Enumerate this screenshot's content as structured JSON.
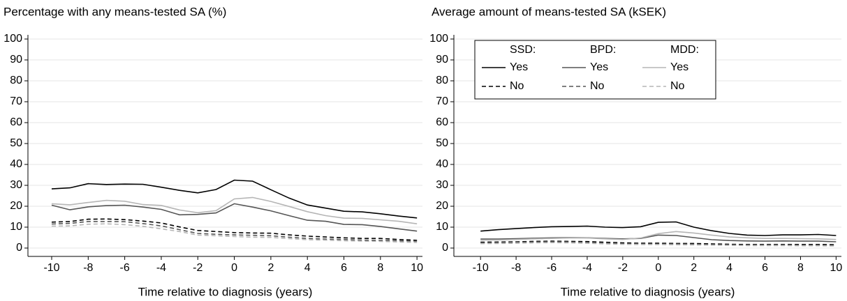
{
  "chart_data": [
    {
      "type": "line",
      "title": "Percentage with any means-tested SA (%)",
      "xlabel": "Time relative to diagnosis (years)",
      "x": [
        -10,
        -9,
        -8,
        -7,
        -6,
        -5,
        -4,
        -3,
        -2,
        -1,
        0,
        1,
        2,
        3,
        4,
        5,
        6,
        7,
        8,
        9,
        10
      ],
      "xlim": [
        -11.3,
        10.3
      ],
      "xticks": [
        -10,
        -8,
        -6,
        -4,
        -2,
        0,
        2,
        4,
        6,
        8,
        10
      ],
      "ylim": [
        -4,
        102
      ],
      "yticks": [
        0,
        10,
        20,
        30,
        40,
        50,
        60,
        70,
        80,
        90,
        100
      ],
      "grid": true,
      "legend": false,
      "series": [
        {
          "color": "#000000",
          "dash": false,
          "values": [
            28.3,
            28.8,
            30.8,
            30.4,
            30.6,
            30.5,
            29.1,
            27.6,
            26.4,
            28.0,
            32.5,
            32.0,
            27.9,
            23.9,
            20.6,
            19.1,
            17.6,
            17.3,
            16.4,
            15.3,
            14.4
          ]
        },
        {
          "color": "#000000",
          "dash": true,
          "values": [
            12.4,
            12.7,
            13.8,
            13.9,
            13.6,
            12.9,
            12.0,
            10.1,
            8.4,
            7.9,
            7.4,
            7.2,
            7.1,
            6.3,
            5.7,
            5.3,
            4.9,
            4.6,
            4.6,
            4.1,
            3.7
          ]
        },
        {
          "color": "#555555",
          "dash": false,
          "values": [
            20.5,
            18.3,
            19.7,
            20.3,
            20.5,
            19.6,
            18.5,
            15.9,
            16.1,
            16.8,
            21.2,
            19.6,
            17.8,
            15.5,
            13.3,
            12.8,
            11.3,
            11.2,
            10.3,
            9.2,
            8.1
          ]
        },
        {
          "color": "#555555",
          "dash": true,
          "values": [
            11.5,
            11.8,
            12.7,
            12.7,
            12.6,
            11.7,
            10.6,
            8.8,
            7.0,
            6.6,
            6.3,
            6.1,
            5.9,
            5.2,
            4.6,
            4.3,
            4.1,
            3.8,
            3.7,
            3.5,
            3.3
          ]
        },
        {
          "color": "#b5b5b5",
          "dash": false,
          "values": [
            21.2,
            20.7,
            21.8,
            22.8,
            22.4,
            20.8,
            20.4,
            18.2,
            16.9,
            17.9,
            23.5,
            24.2,
            22.3,
            19.9,
            17.4,
            15.5,
            14.3,
            14.2,
            13.5,
            12.8,
            11.6
          ]
        },
        {
          "color": "#b5b5b5",
          "dash": true,
          "values": [
            10.5,
            10.6,
            11.4,
            11.6,
            11.2,
            10.4,
            9.2,
            7.9,
            6.2,
            5.9,
            5.5,
            5.2,
            5.1,
            4.5,
            4.0,
            3.8,
            3.5,
            3.3,
            3.2,
            2.9,
            2.7
          ]
        }
      ]
    },
    {
      "type": "line",
      "title": "Average amount of means-tested SA (kSEK)",
      "xlabel": "Time relative to diagnosis (years)",
      "x": [
        -10,
        -9,
        -8,
        -7,
        -6,
        -5,
        -4,
        -3,
        -2,
        -1,
        0,
        1,
        2,
        3,
        4,
        5,
        6,
        7,
        8,
        9,
        10
      ],
      "xlim": [
        -11.5,
        10.3
      ],
      "xticks": [
        -10,
        -8,
        -6,
        -4,
        -2,
        0,
        2,
        4,
        6,
        8,
        10
      ],
      "ylim": [
        -4,
        102
      ],
      "yticks": [
        0,
        10,
        20,
        30,
        40,
        50,
        60,
        70,
        80,
        90,
        100
      ],
      "grid": true,
      "legend": true,
      "series": [
        {
          "group": "SSD:",
          "name": "Yes",
          "color": "#000000",
          "dash": false,
          "values": [
            8.1,
            8.8,
            9.3,
            9.8,
            10.2,
            10.3,
            10.5,
            10.0,
            9.8,
            10.2,
            12.3,
            12.5,
            10.0,
            8.3,
            7.0,
            6.2,
            6.0,
            6.3,
            6.3,
            6.5,
            6.0
          ]
        },
        {
          "group": "SSD:",
          "name": "No",
          "color": "#000000",
          "dash": true,
          "values": [
            2.8,
            2.9,
            3.0,
            3.2,
            3.3,
            3.2,
            3.1,
            2.8,
            2.5,
            2.3,
            2.3,
            2.2,
            2.2,
            2.0,
            1.8,
            1.7,
            1.7,
            1.7,
            1.7,
            1.7,
            1.6
          ]
        },
        {
          "group": "BPD:",
          "name": "Yes",
          "color": "#555555",
          "dash": false,
          "values": [
            4.3,
            4.3,
            4.5,
            4.7,
            4.9,
            5.0,
            4.9,
            4.6,
            4.4,
            4.6,
            6.2,
            6.0,
            5.0,
            4.0,
            3.6,
            3.4,
            3.3,
            3.4,
            3.3,
            3.3,
            3.0
          ]
        },
        {
          "group": "BPD:",
          "name": "No",
          "color": "#555555",
          "dash": true,
          "values": [
            2.5,
            2.6,
            2.8,
            2.9,
            3.0,
            2.9,
            2.7,
            2.4,
            2.1,
            2.0,
            1.9,
            1.9,
            1.8,
            1.6,
            1.5,
            1.4,
            1.4,
            1.4,
            1.3,
            1.3,
            1.2
          ]
        },
        {
          "group": "MDD:",
          "name": "Yes",
          "color": "#b5b5b5",
          "dash": false,
          "values": [
            3.8,
            3.9,
            4.1,
            4.4,
            4.6,
            4.8,
            4.8,
            4.4,
            4.1,
            4.8,
            6.9,
            7.9,
            7.2,
            6.2,
            5.3,
            4.9,
            4.6,
            4.6,
            4.5,
            4.4,
            4.1
          ]
        },
        {
          "group": "MDD:",
          "name": "No",
          "color": "#b5b5b5",
          "dash": true,
          "values": [
            2.1,
            2.2,
            2.3,
            2.5,
            2.6,
            2.5,
            2.3,
            2.0,
            1.8,
            1.7,
            1.7,
            1.6,
            1.5,
            1.4,
            1.3,
            1.2,
            1.2,
            1.2,
            1.1,
            1.1,
            1.0
          ]
        }
      ]
    }
  ]
}
